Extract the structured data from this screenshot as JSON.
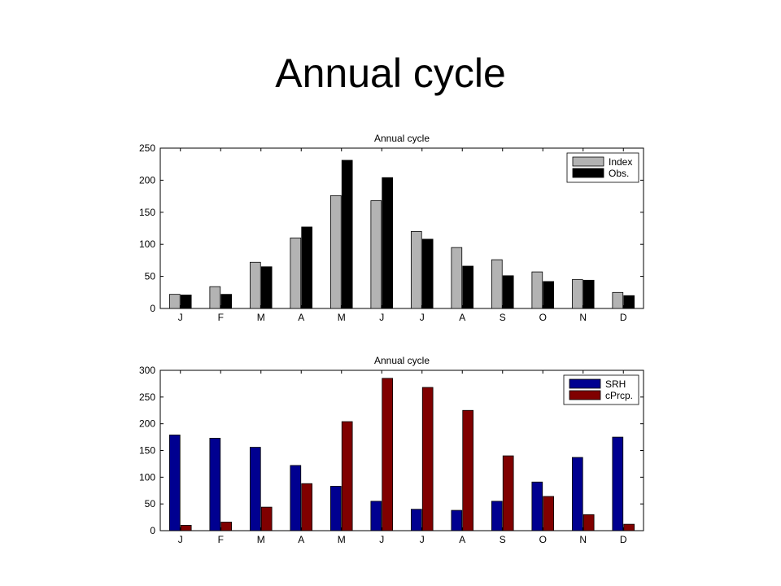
{
  "slide": {
    "title": "Annual cycle"
  },
  "colors": {
    "index": "#b3b3b3",
    "obs": "#000000",
    "srh": "#000090",
    "cprcp": "#800000"
  },
  "chart_data": [
    {
      "type": "bar",
      "title": "Annual cycle",
      "categories": [
        "J",
        "F",
        "M",
        "A",
        "M",
        "J",
        "J",
        "A",
        "S",
        "O",
        "N",
        "D"
      ],
      "series": [
        {
          "name": "Index",
          "values": [
            22,
            34,
            72,
            110,
            176,
            168,
            120,
            95,
            76,
            57,
            45,
            25
          ]
        },
        {
          "name": "Obs.",
          "values": [
            21,
            22,
            65,
            127,
            231,
            204,
            108,
            66,
            51,
            42,
            44,
            20
          ]
        }
      ],
      "ylim": [
        0,
        250
      ],
      "yticks": [
        0,
        50,
        100,
        150,
        200,
        250
      ],
      "legend": "top-right"
    },
    {
      "type": "bar",
      "title": "Annual cycle",
      "categories": [
        "J",
        "F",
        "M",
        "A",
        "M",
        "J",
        "J",
        "A",
        "S",
        "O",
        "N",
        "D"
      ],
      "series": [
        {
          "name": "SRH",
          "values": [
            179,
            173,
            156,
            122,
            83,
            55,
            40,
            38,
            55,
            91,
            137,
            175
          ]
        },
        {
          "name": "cPrcp.",
          "values": [
            10,
            16,
            44,
            88,
            204,
            285,
            268,
            225,
            140,
            64,
            30,
            12
          ]
        }
      ],
      "ylim": [
        0,
        300
      ],
      "yticks": [
        0,
        50,
        100,
        150,
        200,
        250,
        300
      ],
      "legend": "top-right"
    }
  ]
}
